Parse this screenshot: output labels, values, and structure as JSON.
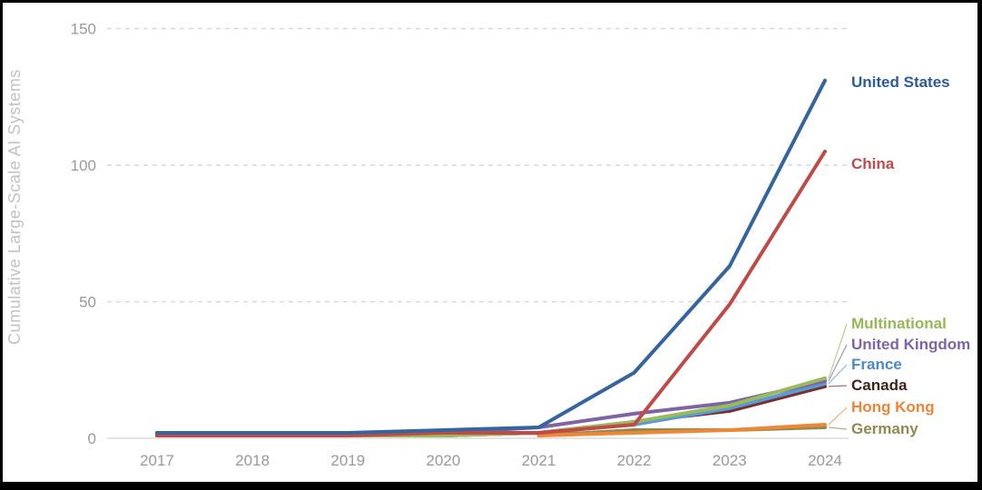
{
  "frame": {
    "background": "#ffffff",
    "border_color": "#000000"
  },
  "axis": {
    "tick_color": "#999999",
    "title_color": "#c2c2c2",
    "grid_color": "#d9d9d9",
    "zero_line_color": "#dcdcdc"
  },
  "chart_data": {
    "type": "line",
    "title": "",
    "xlabel": "",
    "ylabel": "Cumulative Large-Scale AI Systems",
    "x": [
      2017,
      2018,
      2019,
      2020,
      2021,
      2022,
      2023,
      2024
    ],
    "x_tick_labels": [
      "2017",
      "2018",
      "2019",
      "2020",
      "2021",
      "2022",
      "2023",
      "2024"
    ],
    "y_ticks": [
      0,
      50,
      100,
      150
    ],
    "y_tick_labels": [
      "0",
      "50",
      "100",
      "150"
    ],
    "ylim": [
      0,
      150
    ],
    "grid": "horizontal-dashed",
    "legend_position": "right-end-labels",
    "series": [
      {
        "name": "United States",
        "color": "#35659e",
        "label_color": "#2d5a9e",
        "values": [
          2,
          2,
          2,
          3,
          4,
          24,
          63,
          131
        ]
      },
      {
        "name": "China",
        "color": "#bf4a47",
        "label_color": "#c04a48",
        "values": [
          1,
          1,
          1,
          2,
          2,
          5,
          49,
          105
        ]
      },
      {
        "name": "Multinational",
        "color": "#9bbb59",
        "label_color": "#97b854",
        "values": [
          null,
          null,
          1,
          1,
          2,
          6,
          12,
          22
        ]
      },
      {
        "name": "United Kingdom",
        "color": "#7e63a5",
        "label_color": "#7d64a8",
        "values": [
          2,
          2,
          2,
          2,
          4,
          9,
          13,
          21
        ]
      },
      {
        "name": "France",
        "color": "#5b9bd5",
        "label_color": "#4a8ac8",
        "values": [
          null,
          null,
          null,
          1,
          2,
          5,
          11,
          20
        ]
      },
      {
        "name": "Canada",
        "color": "#7a2e2e",
        "label_color": "#3e2318",
        "values": [
          1,
          1,
          1,
          1,
          2,
          6,
          10,
          19
        ]
      },
      {
        "name": "Hong Kong",
        "color": "#ee8836",
        "label_color": "#ee8435",
        "values": [
          null,
          null,
          null,
          null,
          1,
          2,
          3,
          5
        ]
      },
      {
        "name": "Germany",
        "color": "#8f8a4f",
        "label_color": "#8f8a55",
        "values": [
          null,
          null,
          null,
          null,
          1,
          3,
          3,
          4
        ]
      }
    ]
  }
}
